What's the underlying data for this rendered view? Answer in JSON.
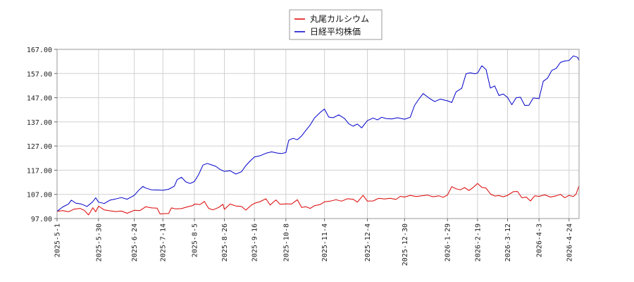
{
  "chart_data": {
    "type": "line",
    "title": "",
    "xlabel": "",
    "ylabel": "",
    "ylim": [
      97,
      167
    ],
    "grid": true,
    "legend_placement": "top-center",
    "y_ticks": [
      "97.00",
      "107.00",
      "117.00",
      "127.00",
      "137.00",
      "147.00",
      "157.00",
      "167.00"
    ],
    "x_ticks": [
      "2025-5-1",
      "2025-5-30",
      "2025-6-24",
      "2025-7-14",
      "2025-8-5",
      "2025-8-26",
      "2025-9-16",
      "2025-10-8",
      "2025-11-4",
      "2025-12-4",
      "2025-12-30",
      "2026-1-29",
      "2026-2-19",
      "2026-3-12",
      "2026-4-3",
      "2026-4-24"
    ],
    "series": [
      {
        "name": "丸尾カルシウム",
        "color": "#dd0000",
        "points": [
          [
            "2025-05-01",
            100.0
          ],
          [
            "2025-05-05",
            100.3
          ],
          [
            "2025-05-09",
            99.8
          ],
          [
            "2025-05-13",
            100.9
          ],
          [
            "2025-05-17",
            101.2
          ],
          [
            "2025-05-20",
            100.4
          ],
          [
            "2025-05-23",
            98.5
          ],
          [
            "2025-05-26",
            101.5
          ],
          [
            "2025-05-28",
            99.8
          ],
          [
            "2025-05-30",
            102.1
          ],
          [
            "2025-06-03",
            100.6
          ],
          [
            "2025-06-07",
            100.2
          ],
          [
            "2025-06-11",
            99.9
          ],
          [
            "2025-06-15",
            100.1
          ],
          [
            "2025-06-19",
            99.2
          ],
          [
            "2025-06-24",
            100.4
          ],
          [
            "2025-06-28",
            100.3
          ],
          [
            "2025-07-02",
            101.9
          ],
          [
            "2025-07-06",
            101.4
          ],
          [
            "2025-07-10",
            101.3
          ],
          [
            "2025-07-12",
            98.9
          ],
          [
            "2025-07-14",
            99.0
          ],
          [
            "2025-07-18",
            99.1
          ],
          [
            "2025-07-20",
            101.4
          ],
          [
            "2025-07-23",
            101.0
          ],
          [
            "2025-07-27",
            101.1
          ],
          [
            "2025-07-31",
            101.8
          ],
          [
            "2025-08-04",
            102.4
          ],
          [
            "2025-08-05",
            103.0
          ],
          [
            "2025-08-09",
            102.8
          ],
          [
            "2025-08-12",
            104.1
          ],
          [
            "2025-08-15",
            101.2
          ],
          [
            "2025-08-18",
            100.6
          ],
          [
            "2025-08-22",
            101.6
          ],
          [
            "2025-08-25",
            102.9
          ],
          [
            "2025-08-26",
            100.8
          ],
          [
            "2025-08-30",
            103.0
          ],
          [
            "2025-09-03",
            102.2
          ],
          [
            "2025-09-07",
            102.0
          ],
          [
            "2025-09-10",
            100.5
          ],
          [
            "2025-09-14",
            102.6
          ],
          [
            "2025-09-16",
            103.3
          ],
          [
            "2025-09-20",
            104.0
          ],
          [
            "2025-09-24",
            105.2
          ],
          [
            "2025-09-27",
            102.6
          ],
          [
            "2025-10-01",
            104.7
          ],
          [
            "2025-10-04",
            102.9
          ],
          [
            "2025-10-08",
            103.1
          ],
          [
            "2025-10-12",
            103.0
          ],
          [
            "2025-10-16",
            104.8
          ],
          [
            "2025-10-19",
            101.6
          ],
          [
            "2025-10-22",
            101.9
          ],
          [
            "2025-10-25",
            101.2
          ],
          [
            "2025-10-28",
            102.3
          ],
          [
            "2025-11-01",
            102.8
          ],
          [
            "2025-11-04",
            103.9
          ],
          [
            "2025-11-08",
            104.2
          ],
          [
            "2025-11-12",
            104.8
          ],
          [
            "2025-11-16",
            104.2
          ],
          [
            "2025-11-20",
            105.2
          ],
          [
            "2025-11-24",
            105.0
          ],
          [
            "2025-11-27",
            103.8
          ],
          [
            "2025-12-01",
            106.6
          ],
          [
            "2025-12-04",
            104.2
          ],
          [
            "2025-12-08",
            104.3
          ],
          [
            "2025-12-12",
            105.4
          ],
          [
            "2025-12-16",
            105.1
          ],
          [
            "2025-12-20",
            105.4
          ],
          [
            "2025-12-24",
            104.9
          ],
          [
            "2025-12-27",
            106.2
          ],
          [
            "2025-12-30",
            105.9
          ],
          [
            "2026-01-03",
            106.6
          ],
          [
            "2026-01-07",
            106.1
          ],
          [
            "2026-01-11",
            106.4
          ],
          [
            "2026-01-15",
            106.7
          ],
          [
            "2026-01-19",
            106.0
          ],
          [
            "2026-01-23",
            106.4
          ],
          [
            "2026-01-26",
            105.8
          ],
          [
            "2026-01-29",
            106.7
          ],
          [
            "2026-02-01",
            110.2
          ],
          [
            "2026-02-04",
            109.3
          ],
          [
            "2026-02-07",
            108.9
          ],
          [
            "2026-02-10",
            109.8
          ],
          [
            "2026-02-13",
            108.6
          ],
          [
            "2026-02-16",
            109.9
          ],
          [
            "2026-02-19",
            111.5
          ],
          [
            "2026-02-22",
            109.9
          ],
          [
            "2026-02-25",
            109.6
          ],
          [
            "2026-02-28",
            107.2
          ],
          [
            "2026-03-03",
            106.3
          ],
          [
            "2026-03-06",
            106.5
          ],
          [
            "2026-03-09",
            106.0
          ],
          [
            "2026-03-12",
            106.6
          ],
          [
            "2026-03-16",
            108.1
          ],
          [
            "2026-03-19",
            108.2
          ],
          [
            "2026-03-22",
            105.6
          ],
          [
            "2026-03-25",
            105.9
          ],
          [
            "2026-03-28",
            104.3
          ],
          [
            "2026-03-31",
            106.4
          ],
          [
            "2026-04-03",
            106.2
          ],
          [
            "2026-04-07",
            106.8
          ],
          [
            "2026-04-11",
            105.9
          ],
          [
            "2026-04-15",
            106.4
          ],
          [
            "2026-04-18",
            107.0
          ],
          [
            "2026-04-21",
            105.6
          ],
          [
            "2026-04-24",
            106.6
          ],
          [
            "2026-04-27",
            106.1
          ],
          [
            "2026-04-29",
            107.2
          ],
          [
            "2026-05-01",
            110.6
          ]
        ]
      },
      {
        "name": "日経平均株価",
        "color": "#0000cc",
        "points": [
          [
            "2025-05-01",
            100.0
          ],
          [
            "2025-05-05",
            101.8
          ],
          [
            "2025-05-09",
            103.0
          ],
          [
            "2025-05-11",
            104.6
          ],
          [
            "2025-05-14",
            103.4
          ],
          [
            "2025-05-18",
            103.0
          ],
          [
            "2025-05-22",
            102.0
          ],
          [
            "2025-05-26",
            104.0
          ],
          [
            "2025-05-28",
            105.6
          ],
          [
            "2025-05-30",
            103.8
          ],
          [
            "2025-06-03",
            103.2
          ],
          [
            "2025-06-07",
            104.6
          ],
          [
            "2025-06-11",
            105.1
          ],
          [
            "2025-06-15",
            105.7
          ],
          [
            "2025-06-19",
            105.0
          ],
          [
            "2025-06-24",
            106.6
          ],
          [
            "2025-06-27",
            108.6
          ],
          [
            "2025-06-30",
            110.3
          ],
          [
            "2025-07-02",
            109.6
          ],
          [
            "2025-07-06",
            108.9
          ],
          [
            "2025-07-10",
            108.8
          ],
          [
            "2025-07-14",
            108.7
          ],
          [
            "2025-07-18",
            109.1
          ],
          [
            "2025-07-22",
            110.4
          ],
          [
            "2025-07-24",
            113.1
          ],
          [
            "2025-07-27",
            114.1
          ],
          [
            "2025-07-30",
            112.2
          ],
          [
            "2025-08-02",
            111.5
          ],
          [
            "2025-08-05",
            112.3
          ],
          [
            "2025-08-08",
            115.2
          ],
          [
            "2025-08-11",
            119.1
          ],
          [
            "2025-08-14",
            119.8
          ],
          [
            "2025-08-17",
            119.2
          ],
          [
            "2025-08-20",
            118.6
          ],
          [
            "2025-08-23",
            117.3
          ],
          [
            "2025-08-26",
            116.5
          ],
          [
            "2025-08-30",
            116.8
          ],
          [
            "2025-09-03",
            115.4
          ],
          [
            "2025-09-07",
            116.4
          ],
          [
            "2025-09-10",
            118.9
          ],
          [
            "2025-09-13",
            120.8
          ],
          [
            "2025-09-16",
            122.5
          ],
          [
            "2025-09-20",
            123.0
          ],
          [
            "2025-09-24",
            124.0
          ],
          [
            "2025-09-28",
            124.6
          ],
          [
            "2025-10-02",
            124.1
          ],
          [
            "2025-10-05",
            123.9
          ],
          [
            "2025-10-08",
            124.3
          ],
          [
            "2025-10-10",
            129.4
          ],
          [
            "2025-10-13",
            130.2
          ],
          [
            "2025-10-16",
            129.6
          ],
          [
            "2025-10-19",
            131.2
          ],
          [
            "2025-10-22",
            133.5
          ],
          [
            "2025-10-25",
            135.7
          ],
          [
            "2025-10-28",
            138.6
          ],
          [
            "2025-11-01",
            140.9
          ],
          [
            "2025-11-04",
            142.3
          ],
          [
            "2025-11-07",
            139.0
          ],
          [
            "2025-11-10",
            138.7
          ],
          [
            "2025-11-14",
            139.9
          ],
          [
            "2025-11-18",
            138.4
          ],
          [
            "2025-11-21",
            136.2
          ],
          [
            "2025-11-24",
            135.2
          ],
          [
            "2025-11-27",
            136.1
          ],
          [
            "2025-11-30",
            134.5
          ],
          [
            "2025-12-04",
            137.5
          ],
          [
            "2025-12-08",
            138.6
          ],
          [
            "2025-12-11",
            137.8
          ],
          [
            "2025-12-14",
            138.9
          ],
          [
            "2025-12-17",
            138.4
          ],
          [
            "2025-12-21",
            138.2
          ],
          [
            "2025-12-25",
            138.7
          ],
          [
            "2025-12-30",
            138.1
          ],
          [
            "2026-01-03",
            138.9
          ],
          [
            "2026-01-06",
            143.8
          ],
          [
            "2026-01-09",
            146.4
          ],
          [
            "2026-01-12",
            148.7
          ],
          [
            "2026-01-16",
            146.9
          ],
          [
            "2026-01-20",
            145.4
          ],
          [
            "2026-01-24",
            146.4
          ],
          [
            "2026-01-29",
            145.7
          ],
          [
            "2026-02-01",
            145.0
          ],
          [
            "2026-02-04",
            149.4
          ],
          [
            "2026-02-08",
            150.9
          ],
          [
            "2026-02-11",
            156.9
          ],
          [
            "2026-02-14",
            157.3
          ],
          [
            "2026-02-17",
            156.9
          ],
          [
            "2026-02-19",
            157.2
          ],
          [
            "2026-02-22",
            160.2
          ],
          [
            "2026-02-25",
            158.6
          ],
          [
            "2026-02-28",
            151.0
          ],
          [
            "2026-03-03",
            151.9
          ],
          [
            "2026-03-06",
            147.9
          ],
          [
            "2026-03-09",
            148.5
          ],
          [
            "2026-03-12",
            147.1
          ],
          [
            "2026-03-15",
            144.1
          ],
          [
            "2026-03-18",
            147.0
          ],
          [
            "2026-03-21",
            147.2
          ],
          [
            "2026-03-24",
            143.8
          ],
          [
            "2026-03-27",
            143.9
          ],
          [
            "2026-03-30",
            146.9
          ],
          [
            "2026-04-03",
            146.6
          ],
          [
            "2026-04-06",
            153.8
          ],
          [
            "2026-04-09",
            155.1
          ],
          [
            "2026-04-12",
            158.3
          ],
          [
            "2026-04-15",
            159.1
          ],
          [
            "2026-04-18",
            161.6
          ],
          [
            "2026-04-21",
            162.2
          ],
          [
            "2026-04-24",
            162.4
          ],
          [
            "2026-04-27",
            164.3
          ],
          [
            "2026-04-30",
            163.7
          ],
          [
            "2026-05-01",
            162.3
          ]
        ]
      }
    ]
  }
}
